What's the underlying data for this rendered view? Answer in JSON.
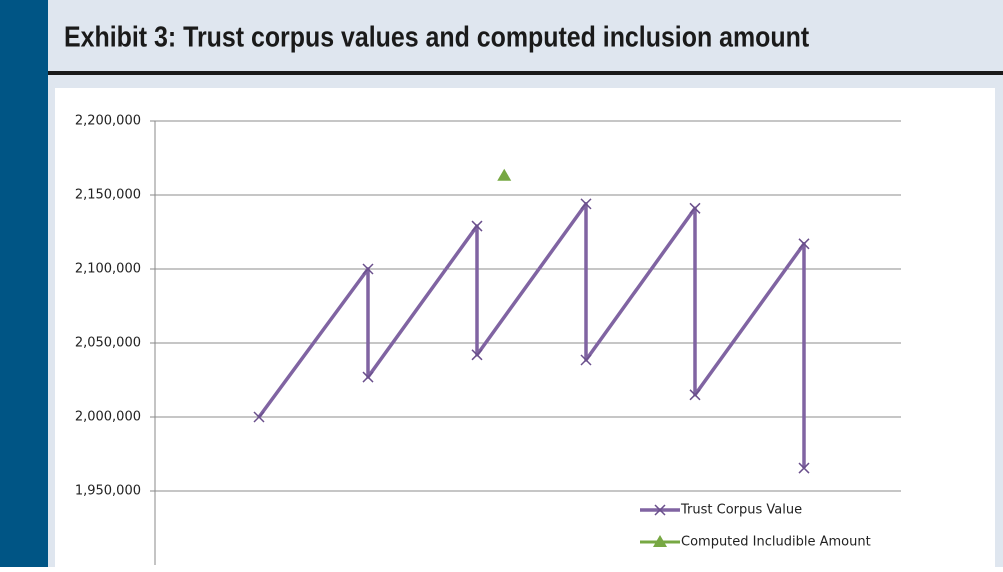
{
  "chart_data": {
    "type": "line",
    "title": "Exhibit 3: Trust corpus values and computed inclusion amount",
    "xlim": [
      0,
      7
    ],
    "ylim": [
      1900000,
      2200000
    ],
    "yticks": [
      {
        "value": 1950000,
        "label": "1,950,000"
      },
      {
        "value": 2000000,
        "label": "2,000,000"
      },
      {
        "value": 2050000,
        "label": "2,050,000"
      },
      {
        "value": 2100000,
        "label": "2,100,000"
      },
      {
        "value": 2150000,
        "label": "2,150,000"
      },
      {
        "value": 2200000,
        "label": "2,200,000"
      }
    ],
    "grid": true,
    "legend": "bottom-right",
    "series": [
      {
        "name": "Trust Corpus Value",
        "color": "#8064a2",
        "marker": "x",
        "line": true,
        "x": [
          1,
          2,
          2,
          3,
          3,
          4,
          4,
          5,
          5,
          6,
          6
        ],
        "values": [
          2000000,
          2100000,
          2027000,
          2129000,
          2042000,
          2144000,
          2038500,
          2141000,
          2015000,
          2117000,
          1965500
        ]
      },
      {
        "name": "Computed Includible Amount",
        "color": "#77a843",
        "marker": "triangle",
        "line": false,
        "x": [
          3.25
        ],
        "values": [
          2163000
        ]
      }
    ]
  }
}
